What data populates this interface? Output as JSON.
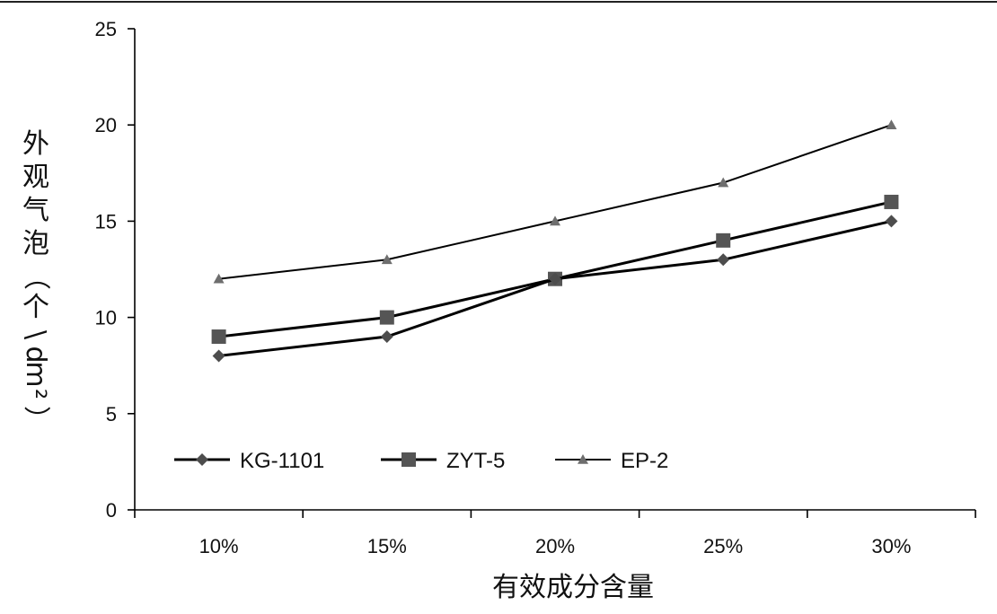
{
  "chart_data": {
    "type": "line",
    "categories": [
      "10%",
      "15%",
      "20%",
      "25%",
      "30%"
    ],
    "xlabel": "有效成分含量",
    "ylabel": "外观气泡（个\\dm²）",
    "ylim": [
      0,
      25
    ],
    "yticks": [
      "0",
      "5",
      "10",
      "15",
      "20",
      "25"
    ],
    "grid": false,
    "legend_position": "bottom-left",
    "series": [
      {
        "name": "KG-1101",
        "values": [
          8,
          9,
          12,
          13,
          15
        ],
        "marker": "diamond",
        "color": "#4d4d4d"
      },
      {
        "name": "ZYT-5",
        "values": [
          9,
          10,
          12,
          14,
          16
        ],
        "marker": "square",
        "color": "#555555"
      },
      {
        "name": "EP-2",
        "values": [
          12,
          13,
          15,
          17,
          20
        ],
        "marker": "triangle",
        "color": "#6e6e6e"
      }
    ]
  }
}
